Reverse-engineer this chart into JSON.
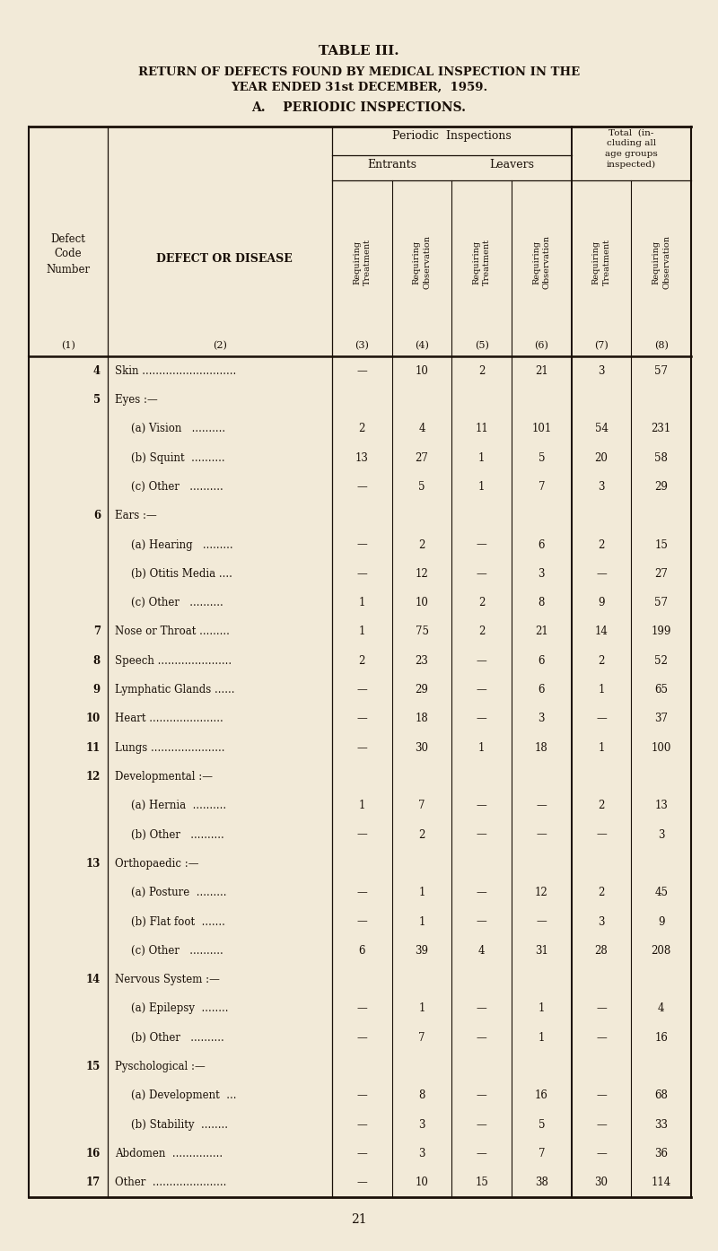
{
  "title1": "TABLE III.",
  "title2a": "RETURN OF DEFECTS FOUND BY MEDICAL INSPECTION IN THE",
  "title2b": "YEAR ENDED 31st DECEMBER,  1959.",
  "title3": "A.    PERIODIC INSPECTIONS.",
  "bg_color": "#f2ead8",
  "text_color": "#1a1008",
  "col_headers": [
    "Requiring\nTreatment",
    "Requiring\nObservation",
    "Requiring\nTreatment",
    "Requiring\nObservation",
    "Requiring\nTreatment",
    "Requiring\nObservation"
  ],
  "col_nums": [
    "(3)",
    "(4)",
    "(5)",
    "(6)",
    "(7)",
    "(8)"
  ],
  "rows": [
    {
      "code": "4",
      "indent": 0,
      "label": "Skin ............................",
      "vals": [
        "—",
        "10",
        "2",
        "21",
        "3",
        "57"
      ]
    },
    {
      "code": "5",
      "indent": 0,
      "label": "Eyes :—",
      "vals": [
        "",
        "",
        "",
        "",
        "",
        ""
      ]
    },
    {
      "code": "",
      "indent": 1,
      "label": "(a) Vision   ..........",
      "vals": [
        "2",
        "4",
        "11",
        "101",
        "54",
        "231"
      ]
    },
    {
      "code": "",
      "indent": 1,
      "label": "(b) Squint  ..........",
      "vals": [
        "13",
        "27",
        "1",
        "5",
        "20",
        "58"
      ]
    },
    {
      "code": "",
      "indent": 1,
      "label": "(c) Other   ..........",
      "vals": [
        "—",
        "5",
        "1",
        "7",
        "3",
        "29"
      ]
    },
    {
      "code": "6",
      "indent": 0,
      "label": "Ears :—",
      "vals": [
        "",
        "",
        "",
        "",
        "",
        ""
      ]
    },
    {
      "code": "",
      "indent": 1,
      "label": "(a) Hearing   .........",
      "vals": [
        "—",
        "2",
        "—",
        "6",
        "2",
        "15"
      ]
    },
    {
      "code": "",
      "indent": 1,
      "label": "(b) Otitis Media ....",
      "vals": [
        "—",
        "12",
        "—",
        "3",
        "—",
        "27"
      ]
    },
    {
      "code": "",
      "indent": 1,
      "label": "(c) Other   ..........",
      "vals": [
        "1",
        "10",
        "2",
        "8",
        "9",
        "57"
      ]
    },
    {
      "code": "7",
      "indent": 0,
      "label": "Nose or Throat .........",
      "vals": [
        "1",
        "75",
        "2",
        "21",
        "14",
        "199"
      ]
    },
    {
      "code": "8",
      "indent": 0,
      "label": "Speech ......................",
      "vals": [
        "2",
        "23",
        "—",
        "6",
        "2",
        "52"
      ]
    },
    {
      "code": "9",
      "indent": 0,
      "label": "Lymphatic Glands ......",
      "vals": [
        "—",
        "29",
        "—",
        "6",
        "1",
        "65"
      ]
    },
    {
      "code": "10",
      "indent": 0,
      "label": "Heart ......................",
      "vals": [
        "—",
        "18",
        "—",
        "3",
        "—",
        "37"
      ]
    },
    {
      "code": "11",
      "indent": 0,
      "label": "Lungs ......................",
      "vals": [
        "—",
        "30",
        "1",
        "18",
        "1",
        "100"
      ]
    },
    {
      "code": "12",
      "indent": 0,
      "label": "Developmental :—",
      "vals": [
        "",
        "",
        "",
        "",
        "",
        ""
      ]
    },
    {
      "code": "",
      "indent": 1,
      "label": "(a) Hernia  ..........",
      "vals": [
        "1",
        "7",
        "—",
        "—",
        "2",
        "13"
      ]
    },
    {
      "code": "",
      "indent": 1,
      "label": "(b) Other   ..........",
      "vals": [
        "—",
        "2",
        "—",
        "—",
        "—",
        "3"
      ]
    },
    {
      "code": "13",
      "indent": 0,
      "label": "Orthopaedic :—",
      "vals": [
        "",
        "",
        "",
        "",
        "",
        ""
      ]
    },
    {
      "code": "",
      "indent": 1,
      "label": "(a) Posture  .........",
      "vals": [
        "—",
        "1",
        "—",
        "12",
        "2",
        "45"
      ]
    },
    {
      "code": "",
      "indent": 1,
      "label": "(b) Flat foot  .......",
      "vals": [
        "—",
        "1",
        "—",
        "—",
        "3",
        "9"
      ]
    },
    {
      "code": "",
      "indent": 1,
      "label": "(c) Other   ..........",
      "vals": [
        "6",
        "39",
        "4",
        "31",
        "28",
        "208"
      ]
    },
    {
      "code": "14",
      "indent": 0,
      "label": "Nervous System :—",
      "vals": [
        "",
        "",
        "",
        "",
        "",
        ""
      ]
    },
    {
      "code": "",
      "indent": 1,
      "label": "(a) Epilepsy  ........",
      "vals": [
        "—",
        "1",
        "—",
        "1",
        "—",
        "4"
      ]
    },
    {
      "code": "",
      "indent": 1,
      "label": "(b) Other   ..........",
      "vals": [
        "—",
        "7",
        "—",
        "1",
        "—",
        "16"
      ]
    },
    {
      "code": "15",
      "indent": 0,
      "label": "Pyschological :—",
      "vals": [
        "",
        "",
        "",
        "",
        "",
        ""
      ]
    },
    {
      "code": "",
      "indent": 1,
      "label": "(a) Development  ...",
      "vals": [
        "—",
        "8",
        "—",
        "16",
        "—",
        "68"
      ]
    },
    {
      "code": "",
      "indent": 1,
      "label": "(b) Stability  ........",
      "vals": [
        "—",
        "3",
        "—",
        "5",
        "—",
        "33"
      ]
    },
    {
      "code": "16",
      "indent": 0,
      "label": "Abdomen  ...............",
      "vals": [
        "—",
        "3",
        "—",
        "7",
        "—",
        "36"
      ]
    },
    {
      "code": "17",
      "indent": 0,
      "label": "Other  ......................",
      "vals": [
        "—",
        "10",
        "15",
        "38",
        "30",
        "114"
      ]
    }
  ],
  "page_num": "21"
}
